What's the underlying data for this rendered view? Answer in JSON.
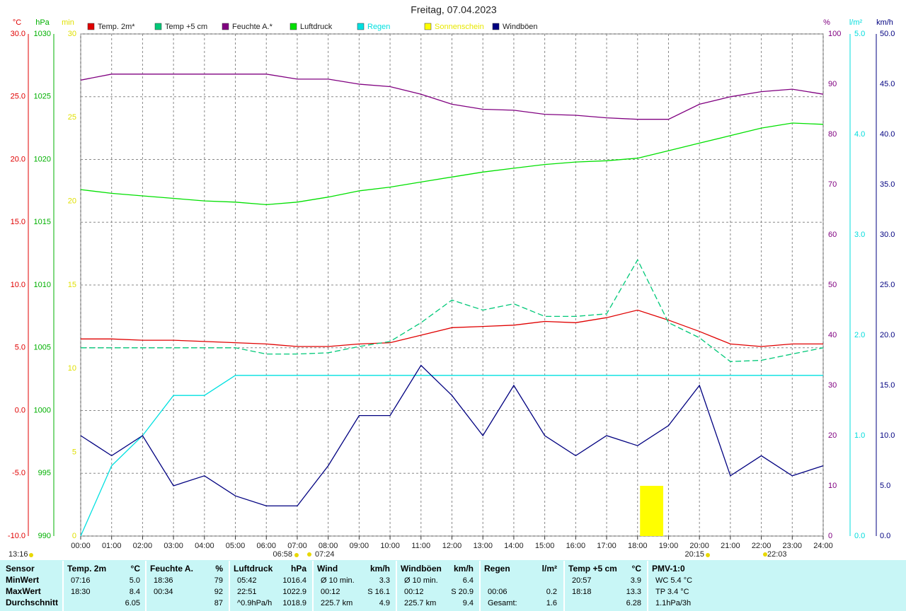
{
  "chart_data": {
    "type": "line",
    "title": "Freitag, 07.04.2023",
    "x": [
      0,
      1,
      2,
      3,
      4,
      5,
      6,
      7,
      8,
      9,
      10,
      11,
      12,
      13,
      14,
      15,
      16,
      17,
      18,
      19,
      20,
      21,
      22,
      23,
      24
    ],
    "xlim": [
      0,
      24
    ],
    "xticks": [
      {
        "value": 0,
        "label": "00:00"
      },
      {
        "value": 1,
        "label": "01:00"
      },
      {
        "value": 2,
        "label": "02:00"
      },
      {
        "value": 3,
        "label": "03:00"
      },
      {
        "value": 4,
        "label": "04:00"
      },
      {
        "value": 5,
        "label": "05:00"
      },
      {
        "value": 6,
        "label": "06:00"
      },
      {
        "value": 7,
        "label": "07:00"
      },
      {
        "value": 8,
        "label": "08:00"
      },
      {
        "value": 9,
        "label": "09:00"
      },
      {
        "value": 10,
        "label": "10:00"
      },
      {
        "value": 11,
        "label": "11:00"
      },
      {
        "value": 12,
        "label": "12:00"
      },
      {
        "value": 13,
        "label": "13:00"
      },
      {
        "value": 14,
        "label": "14:00"
      },
      {
        "value": 15,
        "label": "15:00"
      },
      {
        "value": 16,
        "label": "16:00"
      },
      {
        "value": 17,
        "label": "17:00"
      },
      {
        "value": 18,
        "label": "18:00"
      },
      {
        "value": 19,
        "label": "19:00"
      },
      {
        "value": 20,
        "label": "20:00"
      },
      {
        "value": 21,
        "label": "21:00"
      },
      {
        "value": 22,
        "label": "22:00"
      },
      {
        "value": 23,
        "label": "23:00"
      },
      {
        "value": 24,
        "label": "24:00"
      }
    ],
    "grid": true,
    "axes": [
      {
        "unit": "°C",
        "color": "#e00000",
        "lim": [
          -10,
          30
        ],
        "ticks": [
          {
            "value": -10,
            "label": "-10.0"
          },
          {
            "value": -5,
            "label": "-5.0"
          },
          {
            "value": 0,
            "label": "0.0"
          },
          {
            "value": 5,
            "label": "5.0"
          },
          {
            "value": 10,
            "label": "10.0"
          },
          {
            "value": 15,
            "label": "15.0"
          },
          {
            "value": 20,
            "label": "20.0"
          },
          {
            "value": 25,
            "label": "25.0"
          },
          {
            "value": 30,
            "label": "30.0"
          }
        ]
      },
      {
        "unit": "hPa",
        "color": "#00b000",
        "lim": [
          990,
          1030
        ],
        "ticks": [
          990,
          995,
          1000,
          1005,
          1010,
          1015,
          1020,
          1025,
          1030
        ]
      },
      {
        "unit": "min",
        "color": "#e0e000",
        "lim": [
          0,
          30
        ],
        "ticks": [
          0,
          5,
          10,
          15,
          20,
          25,
          30
        ]
      },
      {
        "unit": "%",
        "color": "#800080",
        "lim": [
          0,
          100
        ],
        "ticks": [
          0,
          10,
          20,
          30,
          40,
          50,
          60,
          70,
          80,
          90,
          100
        ]
      },
      {
        "unit": "l/m²",
        "color": "#00dcdc",
        "lim": [
          0,
          5
        ],
        "ticks": [
          {
            "value": 0,
            "label": "0.0"
          },
          {
            "value": 1,
            "label": "1.0"
          },
          {
            "value": 2,
            "label": "2.0"
          },
          {
            "value": 3,
            "label": "3.0"
          },
          {
            "value": 4,
            "label": "4.0"
          },
          {
            "value": 5,
            "label": "5.0"
          }
        ]
      },
      {
        "unit": "km/h",
        "color": "#000080",
        "lim": [
          0,
          50
        ],
        "ticks": [
          {
            "value": 0,
            "label": "0.0"
          },
          {
            "value": 5,
            "label": "5.0"
          },
          {
            "value": 10,
            "label": "10.0"
          },
          {
            "value": 15,
            "label": "15.0"
          },
          {
            "value": 20,
            "label": "20.0"
          },
          {
            "value": 25,
            "label": "25.0"
          },
          {
            "value": 30,
            "label": "30.0"
          },
          {
            "value": 35,
            "label": "35.0"
          },
          {
            "value": 40,
            "label": "40.0"
          },
          {
            "value": 45,
            "label": "45.0"
          },
          {
            "value": 50,
            "label": "50.0"
          }
        ]
      }
    ],
    "series": [
      {
        "name": "Temp. 2m*",
        "color": "#e00000",
        "axis": 0,
        "values": [
          5.7,
          5.7,
          5.6,
          5.6,
          5.5,
          5.4,
          5.3,
          5.1,
          5.1,
          5.3,
          5.4,
          6.0,
          6.6,
          6.7,
          6.8,
          7.1,
          7.0,
          7.4,
          8.0,
          7.2,
          6.3,
          5.3,
          5.1,
          5.3,
          5.3
        ]
      },
      {
        "name": "Temp +5 cm",
        "color": "#00c878",
        "axis": 0,
        "dash": true,
        "values": [
          5.0,
          5.0,
          5.0,
          5.0,
          5.0,
          5.0,
          4.5,
          4.5,
          4.6,
          5.1,
          5.5,
          7.0,
          8.8,
          8.0,
          8.5,
          7.5,
          7.5,
          7.7,
          12.0,
          7.0,
          5.8,
          3.9,
          4.0,
          4.5,
          5.0
        ]
      },
      {
        "name": "Feuchte A.*",
        "color": "#800080",
        "axis": 3,
        "values": [
          90.8,
          92,
          92,
          92,
          92,
          92,
          92,
          91,
          91,
          90,
          89.5,
          88,
          86,
          85,
          84.8,
          84,
          83.8,
          83.3,
          83,
          83,
          86,
          87.5,
          88.5,
          89,
          88
        ]
      },
      {
        "name": "Luftdruck",
        "color": "#00e000",
        "axis": 1,
        "values": [
          1017.6,
          1017.3,
          1017.1,
          1016.9,
          1016.7,
          1016.6,
          1016.4,
          1016.6,
          1017.0,
          1017.5,
          1017.8,
          1018.2,
          1018.6,
          1019.0,
          1019.3,
          1019.6,
          1019.8,
          1019.9,
          1020.1,
          1020.7,
          1021.3,
          1021.9,
          1022.5,
          1022.9,
          1022.8
        ]
      },
      {
        "name": "Regen",
        "color": "#00e0e0",
        "label_color": "#00e0e0",
        "axis": 4,
        "values": [
          0.0,
          0.7,
          1.0,
          1.4,
          1.4,
          1.6,
          1.6,
          1.6,
          1.6,
          1.6,
          1.6,
          1.6,
          1.6,
          1.6,
          1.6,
          1.6,
          1.6,
          1.6,
          1.6,
          1.6,
          1.6,
          1.6,
          1.6,
          1.6,
          1.6
        ]
      },
      {
        "name": "Sonnenschein",
        "color": "#ffff00",
        "label_color": "#e8e800",
        "axis": 2,
        "mark": "bar",
        "values": [
          null,
          null,
          null,
          null,
          null,
          null,
          null,
          null,
          null,
          null,
          null,
          null,
          null,
          null,
          null,
          null,
          null,
          null,
          3,
          null,
          null,
          null,
          null,
          null,
          null
        ]
      },
      {
        "name": "Windböen",
        "color": "#000080",
        "axis": 5,
        "values": [
          10,
          8,
          10,
          5,
          6,
          4,
          3,
          3,
          7,
          12,
          12,
          17,
          14,
          10,
          15,
          10,
          8,
          10,
          9,
          11,
          15,
          6,
          8,
          6,
          7
        ]
      }
    ],
    "annotations": [
      "13:16",
      "06:58",
      "07:24",
      "20:15",
      "22:03"
    ]
  },
  "table": {
    "row_labels": [
      "Sensor",
      "MinWert",
      "MaxWert",
      "Durchschnitt"
    ],
    "groups": [
      {
        "header": "Temp. 2m",
        "unit": "°C",
        "rows": [
          [
            "07:16",
            "5.0"
          ],
          [
            "18:30",
            "8.4"
          ],
          [
            null,
            "6.05"
          ]
        ]
      },
      {
        "header": "Feuchte A.",
        "unit": "%",
        "rows": [
          [
            "18:36",
            "79"
          ],
          [
            "00:34",
            "92"
          ],
          [
            null,
            "87"
          ]
        ]
      },
      {
        "header": "Luftdruck",
        "unit": "hPa",
        "rows": [
          [
            "05:42",
            "1016.4"
          ],
          [
            "22:51",
            "1022.9"
          ],
          [
            "^0.9hPa/h",
            "1018.9"
          ]
        ]
      },
      {
        "header": "Wind",
        "unit": "km/h",
        "rows": [
          [
            "Ø 10 min.",
            "3.3"
          ],
          [
            "00:12",
            "S 16.1"
          ],
          [
            "225.7 km",
            "4.9"
          ]
        ]
      },
      {
        "header": "Windböen",
        "unit": "km/h",
        "rows": [
          [
            "Ø 10 min.",
            "6.4"
          ],
          [
            "00:12",
            "S 20.9"
          ],
          [
            "225.7 km",
            "9.4"
          ]
        ]
      },
      {
        "header": "Regen",
        "unit": "l/m²",
        "rows": [
          [
            null,
            null
          ],
          [
            "00:06",
            "0.2"
          ],
          [
            "Gesamt:",
            "1.6"
          ]
        ]
      },
      {
        "header": "Temp +5 cm",
        "unit": "°C",
        "rows": [
          [
            "20:57",
            "3.9"
          ],
          [
            "18:18",
            "13.3"
          ],
          [
            null,
            "6.28"
          ]
        ]
      },
      {
        "header": "PMV-1:0",
        "unit": null,
        "rows": [
          [
            "WC 5.4 °C",
            null
          ],
          [
            "TP 3.4 °C",
            null
          ],
          [
            "1.1hPa/3h",
            null
          ]
        ]
      }
    ]
  }
}
